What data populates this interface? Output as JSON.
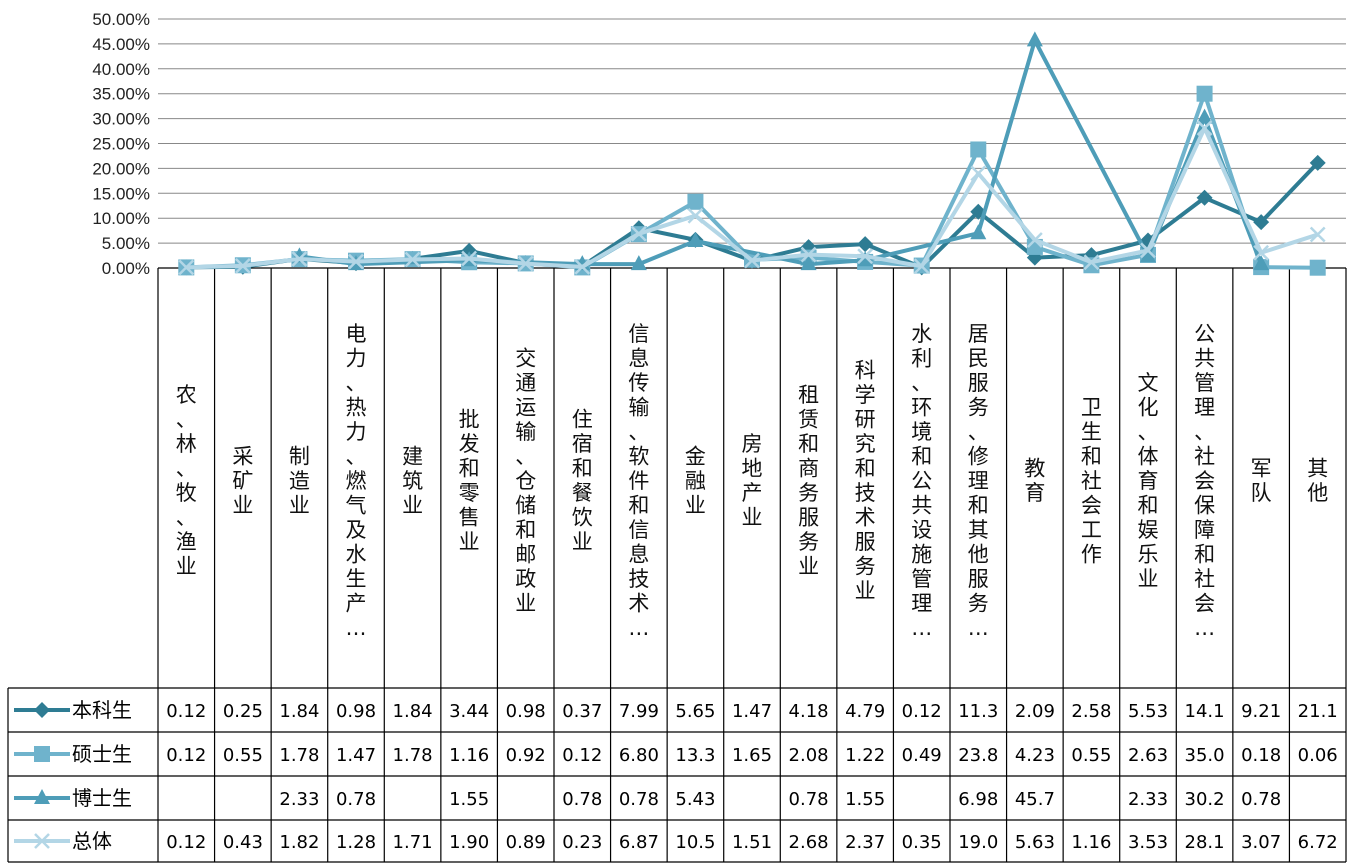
{
  "chart_data": {
    "type": "line",
    "title": "",
    "xlabel": "",
    "ylabel": "",
    "ylim": [
      0,
      50
    ],
    "y_ticks": [
      "0.00%",
      "5.00%",
      "10.00%",
      "15.00%",
      "20.00%",
      "25.00%",
      "30.00%",
      "35.00%",
      "40.00%",
      "45.00%",
      "50.00%"
    ],
    "grid": true,
    "legend": "data-table",
    "categories": [
      "农、林、牧、渔业",
      "采矿业",
      "制造业",
      "电力、热力、燃气及水生产…",
      "建筑业",
      "批发和零售业",
      "交通运输、仓储和邮政业",
      "住宿和餐饮业",
      "信息传输、软件和信息技术…",
      "金融业",
      "房地产业",
      "租赁和商务服务业",
      "科学研究和技术服务业",
      "水利、环境和公共设施管理…",
      "居民服务、修理和其他服务…",
      "教育",
      "卫生和社会工作",
      "文化、体育和娱乐业",
      "公共管理、社会保障和社会…",
      "军队",
      "其他"
    ],
    "series": [
      {
        "name": "本科生",
        "color": "#2E7C93",
        "marker": "diamond",
        "values": [
          0.12,
          0.25,
          1.84,
          0.98,
          1.84,
          3.44,
          0.98,
          0.37,
          7.99,
          5.65,
          1.47,
          4.18,
          4.79,
          0.12,
          11.3,
          2.09,
          2.58,
          5.53,
          14.1,
          9.21,
          21.1
        ]
      },
      {
        "name": "硕士生",
        "color": "#6FB3CC",
        "marker": "square",
        "values": [
          0.12,
          0.55,
          1.78,
          1.47,
          1.78,
          1.16,
          0.92,
          0.12,
          6.8,
          13.3,
          1.65,
          2.08,
          1.22,
          0.49,
          23.8,
          4.23,
          0.55,
          2.63,
          35.0,
          0.18,
          0.06
        ]
      },
      {
        "name": "博士生",
        "color": "#4E9DB8",
        "marker": "triangle",
        "values": [
          null,
          null,
          2.33,
          0.78,
          null,
          1.55,
          null,
          0.78,
          0.78,
          5.43,
          null,
          0.78,
          1.55,
          null,
          6.98,
          45.7,
          null,
          2.33,
          30.2,
          0.78,
          null
        ]
      },
      {
        "name": "总体",
        "color": "#B3D6E6",
        "marker": "x",
        "values": [
          0.12,
          0.43,
          1.82,
          1.28,
          1.71,
          1.9,
          0.89,
          0.23,
          6.87,
          10.5,
          1.51,
          2.68,
          2.37,
          0.35,
          19.0,
          5.63,
          1.16,
          3.53,
          28.1,
          3.07,
          6.72
        ]
      }
    ],
    "table_cells": [
      [
        "0.12",
        "0.25",
        "1.84",
        "0.98",
        "1.84",
        "3.44",
        "0.98",
        "0.37",
        "7.99",
        "5.65",
        "1.47",
        "4.18",
        "4.79",
        "0.12",
        "11.3",
        "2.09",
        "2.58",
        "5.53",
        "14.1",
        "9.21",
        "21.1"
      ],
      [
        "0.12",
        "0.55",
        "1.78",
        "1.47",
        "1.78",
        "1.16",
        "0.92",
        "0.12",
        "6.80",
        "13.3",
        "1.65",
        "2.08",
        "1.22",
        "0.49",
        "23.8",
        "4.23",
        "0.55",
        "2.63",
        "35.0",
        "0.18",
        "0.06"
      ],
      [
        "",
        "",
        "2.33",
        "0.78",
        "",
        "1.55",
        "",
        "0.78",
        "0.78",
        "5.43",
        "",
        "0.78",
        "1.55",
        "",
        "6.98",
        "45.7",
        "",
        "2.33",
        "30.2",
        "0.78",
        ""
      ],
      [
        "0.12",
        "0.43",
        "1.82",
        "1.28",
        "1.71",
        "1.90",
        "0.89",
        "0.23",
        "6.87",
        "10.5",
        "1.51",
        "2.68",
        "2.37",
        "0.35",
        "19.0",
        "5.63",
        "1.16",
        "3.53",
        "28.1",
        "3.07",
        "6.72"
      ]
    ]
  }
}
